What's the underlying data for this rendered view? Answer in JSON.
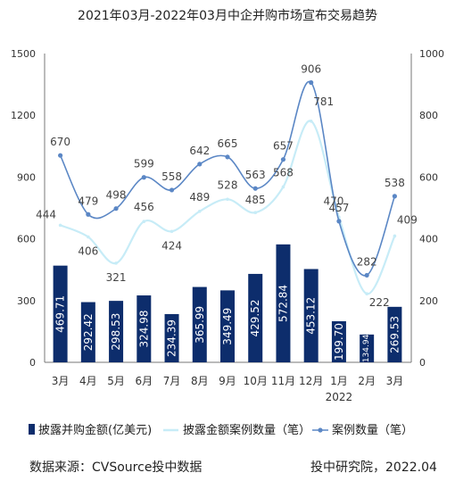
{
  "chart_data": {
    "type": "bar+line",
    "title": "2021年03月-2022年03月中企并购市场宣布交易趋势",
    "categories": [
      "3月",
      "4月",
      "5月",
      "6月",
      "7月",
      "8月",
      "9月",
      "10月",
      "11月",
      "12月",
      "1月",
      "2月",
      "3月"
    ],
    "year_label": "2022",
    "left_axis": {
      "ylim": [
        0,
        1500
      ],
      "ticks": [
        "0",
        "300",
        "600",
        "900",
        "1200",
        "1500"
      ]
    },
    "right_axis": {
      "ylim": [
        0,
        1000
      ],
      "ticks": [
        "0",
        "200",
        "400",
        "600",
        "800",
        "1000"
      ]
    },
    "series": [
      {
        "name": "披露并购金额(亿美元)",
        "type": "bar",
        "axis": "left",
        "color": "#0d2d6c",
        "values": [
          469.71,
          292.42,
          298.53,
          324.98,
          234.39,
          365.99,
          349.49,
          429.52,
          572.84,
          453.12,
          199.7,
          134.94,
          269.53
        ],
        "labels": [
          "469.71",
          "292.42",
          "298.53",
          "324.98",
          "234.39",
          "365.99",
          "349.49",
          "429.52",
          "572.84",
          "453.12",
          "199.70",
          "134.94",
          "269.53"
        ]
      },
      {
        "name": "披露金额案例数量（笔）",
        "type": "line",
        "axis": "right",
        "color": "#c7ecf7",
        "values": [
          444,
          406,
          321,
          456,
          424,
          489,
          528,
          485,
          568,
          781,
          470,
          222,
          409
        ],
        "labels": [
          "444",
          "406",
          "321",
          "456",
          "424",
          "489",
          "528",
          "485",
          "568",
          "781",
          "470",
          "222",
          "409"
        ]
      },
      {
        "name": "案例数量（笔）",
        "type": "line",
        "axis": "right",
        "color": "#5b87c5",
        "values": [
          670,
          479,
          498,
          599,
          558,
          642,
          665,
          563,
          657,
          906,
          457,
          282,
          538
        ],
        "labels": [
          "670",
          "479",
          "498",
          "599",
          "558",
          "642",
          "665",
          "563",
          "657",
          "906",
          "457",
          "282",
          "538"
        ]
      }
    ]
  },
  "footer": {
    "source": "数据来源：CVSource投中数据",
    "credit": "投中研究院，2022.04"
  }
}
